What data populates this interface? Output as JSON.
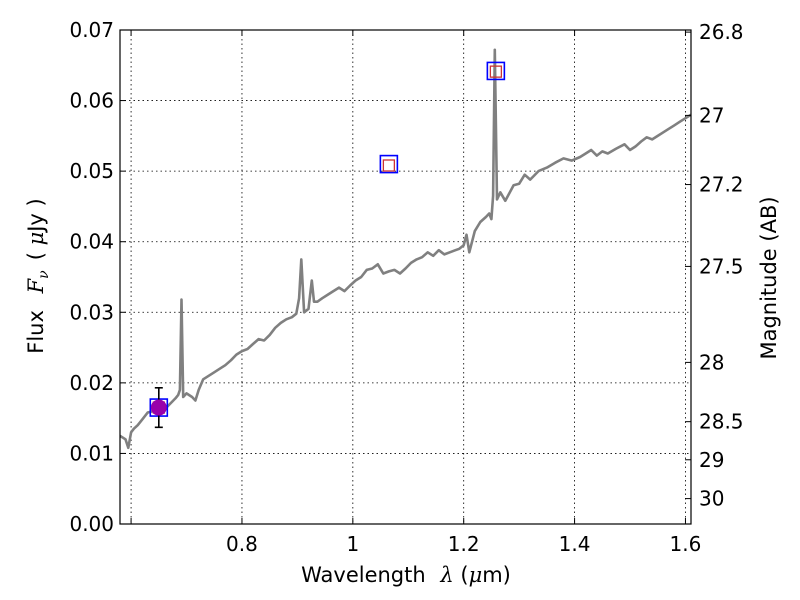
{
  "chart_data": {
    "type": "line",
    "title": "",
    "xlabel": {
      "prefix": "Wavelength",
      "symbol": "λ",
      "unit_open": " (",
      "unit_mu": "μ",
      "unit_rest": "m)"
    },
    "ylabel": {
      "prefix": "Flux",
      "symbol": "F",
      "subscript": "ν",
      "unit_open": "( ",
      "unit_mu": "μ",
      "unit_rest": "Jy )"
    },
    "y2label": "Magnitude (AB)",
    "xlim": [
      0.58,
      1.61
    ],
    "ylim": [
      0.0,
      0.07
    ],
    "x_ticks": [
      0.6,
      0.8,
      1.0,
      1.2,
      1.4,
      1.6
    ],
    "x_tick_labels": [
      "",
      "0.8",
      "1",
      "1.2",
      "1.4",
      "1.6"
    ],
    "y_ticks": [
      0.0,
      0.01,
      0.02,
      0.03,
      0.04,
      0.05,
      0.06,
      0.07
    ],
    "y_tick_labels": [
      "0.00",
      "0.01",
      "0.02",
      "0.03",
      "0.04",
      "0.05",
      "0.06",
      "0.07"
    ],
    "y2_ticks": [
      {
        "label": "26.8",
        "flux": 0.0697
      },
      {
        "label": "27",
        "flux": 0.0579
      },
      {
        "label": "27.2",
        "flux": 0.0481
      },
      {
        "label": "27.5",
        "flux": 0.0365
      },
      {
        "label": "28",
        "flux": 0.0229
      },
      {
        "label": "28.5",
        "flux": 0.0145
      },
      {
        "label": "29",
        "flux": 0.0091
      },
      {
        "label": "30",
        "flux": 0.0036
      }
    ],
    "grid": true,
    "colors": {
      "spectrum": "#808080",
      "photometry_marker": "#0000ff",
      "model_marker": "#cc3333",
      "measured_point": "#9900aa",
      "errorbar": "#000000"
    },
    "series": [
      {
        "style": "line",
        "x": [
          0.58,
          0.59,
          0.595,
          0.6,
          0.605,
          0.612,
          0.62,
          0.63,
          0.64,
          0.65,
          0.66,
          0.67,
          0.68,
          0.685,
          0.688,
          0.691,
          0.694,
          0.7,
          0.71,
          0.716,
          0.722,
          0.73,
          0.74,
          0.75,
          0.76,
          0.77,
          0.78,
          0.79,
          0.8,
          0.81,
          0.82,
          0.83,
          0.84,
          0.85,
          0.86,
          0.87,
          0.88,
          0.89,
          0.898,
          0.903,
          0.907,
          0.912,
          0.92,
          0.926,
          0.93,
          0.936,
          0.945,
          0.955,
          0.965,
          0.975,
          0.985,
          0.995,
          1.005,
          1.015,
          1.025,
          1.035,
          1.045,
          1.055,
          1.065,
          1.075,
          1.085,
          1.095,
          1.105,
          1.115,
          1.125,
          1.135,
          1.145,
          1.155,
          1.165,
          1.175,
          1.185,
          1.192,
          1.2,
          1.205,
          1.21,
          1.22,
          1.23,
          1.24,
          1.246,
          1.25,
          1.253,
          1.256,
          1.26,
          1.266,
          1.275,
          1.29,
          1.3,
          1.31,
          1.32,
          1.335,
          1.35,
          1.365,
          1.38,
          1.395,
          1.41,
          1.42,
          1.43,
          1.44,
          1.45,
          1.46,
          1.475,
          1.49,
          1.5,
          1.51,
          1.52,
          1.53,
          1.54,
          1.55,
          1.56,
          1.57,
          1.58,
          1.59,
          1.6,
          1.61
        ],
        "y": [
          0.0125,
          0.012,
          0.0108,
          0.013,
          0.0135,
          0.014,
          0.0148,
          0.0158,
          0.016,
          0.0164,
          0.0162,
          0.017,
          0.0178,
          0.0183,
          0.019,
          0.0318,
          0.018,
          0.0185,
          0.018,
          0.0175,
          0.019,
          0.0205,
          0.021,
          0.0215,
          0.022,
          0.0225,
          0.0232,
          0.024,
          0.0245,
          0.0248,
          0.0255,
          0.0262,
          0.026,
          0.0268,
          0.0278,
          0.0285,
          0.029,
          0.0293,
          0.0298,
          0.032,
          0.0375,
          0.03,
          0.0305,
          0.0345,
          0.0315,
          0.0315,
          0.032,
          0.0325,
          0.033,
          0.0335,
          0.033,
          0.0338,
          0.0345,
          0.035,
          0.036,
          0.0362,
          0.0368,
          0.0355,
          0.0358,
          0.036,
          0.0355,
          0.0362,
          0.037,
          0.0375,
          0.0378,
          0.0385,
          0.038,
          0.0388,
          0.0382,
          0.0385,
          0.0388,
          0.039,
          0.0395,
          0.041,
          0.0385,
          0.0415,
          0.0428,
          0.0435,
          0.044,
          0.0432,
          0.0465,
          0.0672,
          0.046,
          0.047,
          0.0458,
          0.048,
          0.0482,
          0.0495,
          0.0488,
          0.05,
          0.0505,
          0.0512,
          0.0518,
          0.0515,
          0.052,
          0.0525,
          0.053,
          0.0522,
          0.0528,
          0.0525,
          0.0532,
          0.0538,
          0.053,
          0.0535,
          0.0542,
          0.0548,
          0.0545,
          0.055,
          0.0555,
          0.056,
          0.0565,
          0.057,
          0.0575,
          0.058
        ]
      },
      {
        "style": "open-square",
        "marker_color": "photometry_marker",
        "x": [
          0.65,
          1.065,
          1.258
        ],
        "y": [
          0.0165,
          0.051,
          0.0642
        ]
      },
      {
        "style": "open-square-small",
        "marker_color": "model_marker",
        "x": [
          0.65,
          1.065,
          1.258
        ],
        "y": [
          0.0165,
          0.0508,
          0.0641
        ]
      },
      {
        "style": "filled-circle-errorbar",
        "marker_color": "measured_point",
        "x": [
          0.65
        ],
        "y": [
          0.0165
        ],
        "yerr": [
          0.0028
        ]
      }
    ]
  }
}
